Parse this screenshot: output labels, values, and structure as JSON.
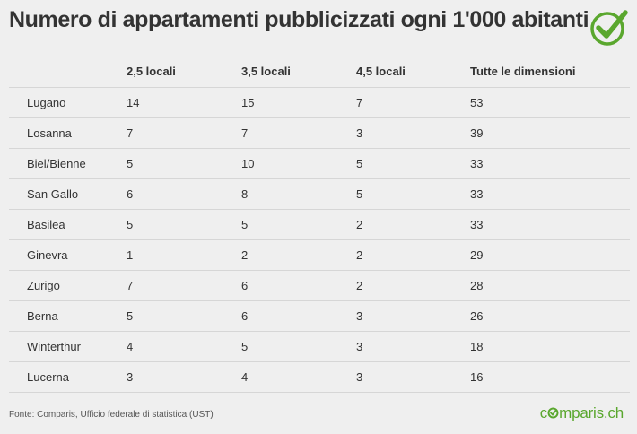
{
  "title": "Numero di appartamenti pubblicizzati ogni 1'000 abitanti",
  "chart_data": {
    "type": "table",
    "columns": [
      "",
      "2,5 locali",
      "3,5 locali",
      "4,5 locali",
      "Tutte le dimensioni"
    ],
    "rows": [
      [
        "Lugano",
        "14",
        "15",
        "7",
        "53"
      ],
      [
        "Losanna",
        "7",
        "7",
        "3",
        "39"
      ],
      [
        "Biel/Bienne",
        "5",
        "10",
        "5",
        "33"
      ],
      [
        "San Gallo",
        "6",
        "8",
        "5",
        "33"
      ],
      [
        "Basilea",
        "5",
        "5",
        "2",
        "33"
      ],
      [
        "Ginevra",
        "1",
        "2",
        "2",
        "29"
      ],
      [
        "Zurigo",
        "7",
        "6",
        "2",
        "28"
      ],
      [
        "Berna",
        "5",
        "6",
        "3",
        "26"
      ],
      [
        "Winterthur",
        "4",
        "5",
        "3",
        "18"
      ],
      [
        "Lucerna",
        "3",
        "4",
        "3",
        "16"
      ]
    ]
  },
  "source": "Fonte: Comparis, Ufficio federale di statistica (UST)",
  "brand": {
    "text_before": "c",
    "text_after": "mparis.ch",
    "color": "#5aa72e",
    "logo_icon": "check-circle-icon"
  },
  "colors": {
    "background": "#efefef",
    "accent": "#5aa72e",
    "title": "#333333"
  }
}
